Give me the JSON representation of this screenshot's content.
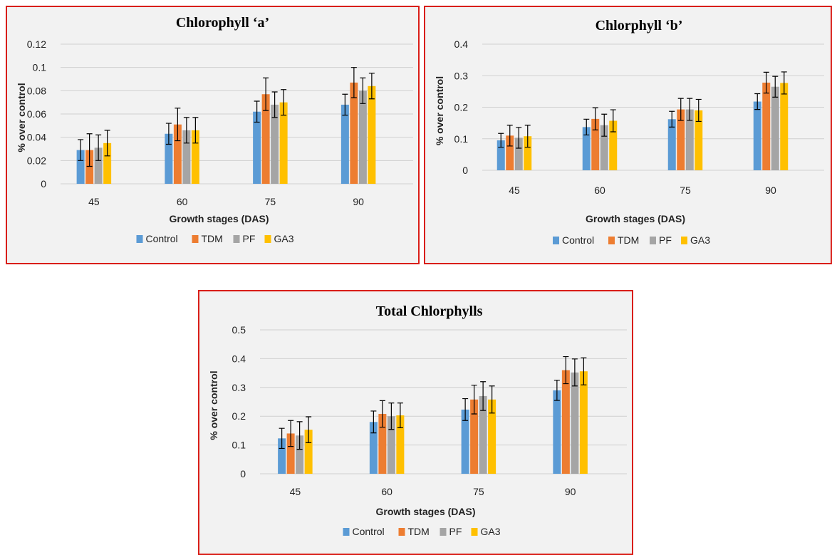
{
  "legend": [
    "Control",
    "TDM",
    "PF",
    "GA3"
  ],
  "colors": {
    "Control": "#5b9bd5",
    "TDM": "#ed7d31",
    "PF": "#a5a5a5",
    "GA3": "#ffc000"
  },
  "chart_data": [
    {
      "type": "bar",
      "title": "Chlorophyll ‘a’",
      "xlabel": "Growth stages (DAS)",
      "ylabel": "% over control",
      "categories": [
        "45",
        "60",
        "75",
        "90"
      ],
      "ylim": [
        0,
        0.12
      ],
      "yticks": [
        "0",
        "0.02",
        "0.04",
        "0.06",
        "0.08",
        "0.1",
        "0.12"
      ],
      "grid": true,
      "legend_position": "bottom",
      "series": [
        {
          "name": "Control",
          "values": [
            0.029,
            0.043,
            0.062,
            0.068
          ],
          "errors": [
            0.009,
            0.009,
            0.009,
            0.009
          ]
        },
        {
          "name": "TDM",
          "values": [
            0.029,
            0.051,
            0.077,
            0.087
          ],
          "errors": [
            0.014,
            0.014,
            0.014,
            0.013
          ]
        },
        {
          "name": "PF",
          "values": [
            0.031,
            0.046,
            0.068,
            0.08
          ],
          "errors": [
            0.011,
            0.011,
            0.011,
            0.011
          ]
        },
        {
          "name": "GA3",
          "values": [
            0.035,
            0.046,
            0.07,
            0.084
          ],
          "errors": [
            0.011,
            0.011,
            0.011,
            0.011
          ]
        }
      ]
    },
    {
      "type": "bar",
      "title": "Chlorphyll ‘b’",
      "xlabel": "Growth stages (DAS)",
      "ylabel": "% over control",
      "categories": [
        "45",
        "60",
        "75",
        "90"
      ],
      "ylim": [
        0,
        0.4
      ],
      "yticks": [
        "0",
        "0.1",
        "0.2",
        "0.3",
        "0.4"
      ],
      "grid": true,
      "legend_position": "bottom",
      "series": [
        {
          "name": "Control",
          "values": [
            0.095,
            0.137,
            0.162,
            0.218
          ],
          "errors": [
            0.022,
            0.025,
            0.025,
            0.025
          ]
        },
        {
          "name": "TDM",
          "values": [
            0.11,
            0.163,
            0.193,
            0.278
          ],
          "errors": [
            0.033,
            0.035,
            0.035,
            0.033
          ]
        },
        {
          "name": "PF",
          "values": [
            0.103,
            0.143,
            0.193,
            0.265
          ],
          "errors": [
            0.033,
            0.035,
            0.035,
            0.033
          ]
        },
        {
          "name": "GA3",
          "values": [
            0.108,
            0.157,
            0.19,
            0.277
          ],
          "errors": [
            0.035,
            0.035,
            0.035,
            0.035
          ]
        }
      ]
    },
    {
      "type": "bar",
      "title": "Total Chlorphylls",
      "xlabel": "Growth stages (DAS)",
      "ylabel": "% over control",
      "categories": [
        "45",
        "60",
        "75",
        "90"
      ],
      "ylim": [
        0,
        0.5
      ],
      "yticks": [
        "0",
        "0.1",
        "0.2",
        "0.3",
        "0.4",
        "0.5"
      ],
      "grid": true,
      "legend_position": "bottom",
      "series": [
        {
          "name": "Control",
          "values": [
            0.123,
            0.18,
            0.223,
            0.29
          ],
          "errors": [
            0.035,
            0.038,
            0.038,
            0.035
          ]
        },
        {
          "name": "TDM",
          "values": [
            0.14,
            0.208,
            0.258,
            0.36
          ],
          "errors": [
            0.045,
            0.046,
            0.05,
            0.047
          ]
        },
        {
          "name": "PF",
          "values": [
            0.133,
            0.2,
            0.27,
            0.352
          ],
          "errors": [
            0.048,
            0.046,
            0.05,
            0.047
          ]
        },
        {
          "name": "GA3",
          "values": [
            0.153,
            0.203,
            0.258,
            0.356
          ],
          "errors": [
            0.045,
            0.043,
            0.047,
            0.047
          ]
        }
      ]
    }
  ]
}
